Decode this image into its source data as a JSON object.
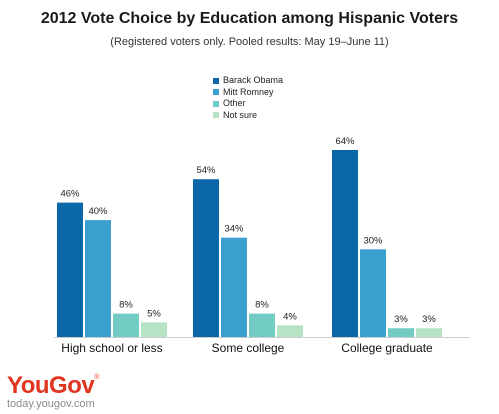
{
  "title": "2012 Vote Choice by Education among Hispanic Voters",
  "subtitle": "(Registered voters only. Pooled results: May 19–June 11)",
  "brand": {
    "logo": "YouGov",
    "url": "today.yougov.com"
  },
  "colors": {
    "obama": "#0a67a8",
    "romney": "#3aa0cf",
    "other": "#72ccc4",
    "notsure": "#b6e3c3",
    "brand": "#e1351f"
  },
  "chart_data": {
    "type": "bar",
    "title": "2012 Vote Choice by Education among Hispanic Voters",
    "subtitle": "(Registered voters only. Pooled results: May 19–June 11)",
    "categories": [
      "High school or less",
      "Some college",
      "College graduate"
    ],
    "series": [
      {
        "name": "Barack Obama",
        "values": [
          46,
          54,
          64
        ],
        "labels": [
          "46%",
          "54%",
          "64%"
        ],
        "color": "#0a67a8"
      },
      {
        "name": "Mitt Romney",
        "values": [
          40,
          34,
          30
        ],
        "labels": [
          "40%",
          "34%",
          "30%"
        ],
        "color": "#3aa0cf"
      },
      {
        "name": "Other",
        "values": [
          8,
          8,
          3
        ],
        "labels": [
          "8%",
          "8%",
          "3%"
        ],
        "color": "#72ccc4"
      },
      {
        "name": "Not sure",
        "values": [
          5,
          4,
          3
        ],
        "labels": [
          "5%",
          "4%",
          "3%"
        ],
        "color": "#b6e3c3"
      }
    ],
    "ylim": [
      0,
      70
    ],
    "grid": false,
    "legend": "top-center",
    "xlabel": "",
    "ylabel": ""
  }
}
